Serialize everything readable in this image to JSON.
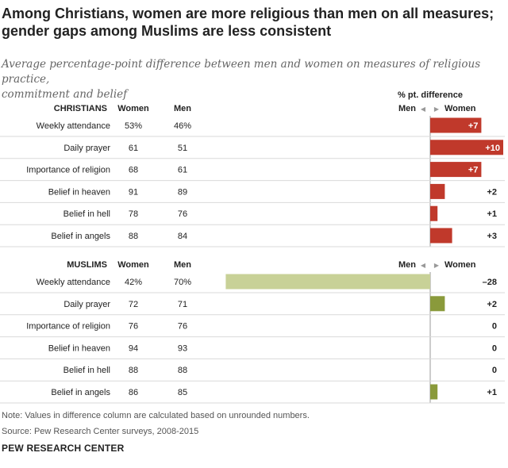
{
  "title_lines": [
    "Among Christians, women are more religious than men on all measures;",
    "gender gaps among Muslims are less consistent"
  ],
  "subtitle_lines": [
    "Average percentage-point difference between men and women on measures of religious practice,",
    "commitment and belief"
  ],
  "diff_header": "% pt. difference",
  "axis_left_label": "Men",
  "axis_right_label": "Women",
  "arrow_left": "◀",
  "arrow_right": "▶",
  "col_women": "Women",
  "col_men": "Men",
  "colors": {
    "christian_bar": "#c0392b",
    "muslim_positive": "#8a9a3b",
    "muslim_negative": "#c8d197"
  },
  "chart_data": {
    "type": "bar",
    "groups": [
      {
        "name": "CHRISTIANS",
        "rows": [
          {
            "label": "Weekly attendance",
            "women": "53%",
            "men": "46%",
            "diff": 7,
            "diff_label": "+7"
          },
          {
            "label": "Daily prayer",
            "women": "61",
            "men": "51",
            "diff": 10,
            "diff_label": "+10"
          },
          {
            "label": "Importance of religion",
            "women": "68",
            "men": "61",
            "diff": 7,
            "diff_label": "+7"
          },
          {
            "label": "Belief in heaven",
            "women": "91",
            "men": "89",
            "diff": 2,
            "diff_label": "+2"
          },
          {
            "label": "Belief in hell",
            "women": "78",
            "men": "76",
            "diff": 1,
            "diff_label": "+1"
          },
          {
            "label": "Belief in angels",
            "women": "88",
            "men": "84",
            "diff": 3,
            "diff_label": "+3"
          }
        ]
      },
      {
        "name": "MUSLIMS",
        "rows": [
          {
            "label": "Weekly attendance",
            "women": "42%",
            "men": "70%",
            "diff": -28,
            "diff_label": "–28"
          },
          {
            "label": "Daily prayer",
            "women": "72",
            "men": "71",
            "diff": 2,
            "diff_label": "+2"
          },
          {
            "label": "Importance of religion",
            "women": "76",
            "men": "76",
            "diff": 0,
            "diff_label": "0"
          },
          {
            "label": "Belief in heaven",
            "women": "94",
            "men": "93",
            "diff": 0,
            "diff_label": "0"
          },
          {
            "label": "Belief in hell",
            "women": "88",
            "men": "88",
            "diff": 0,
            "diff_label": "0"
          },
          {
            "label": "Belief in angels",
            "women": "86",
            "men": "85",
            "diff": 1,
            "diff_label": "+1"
          }
        ]
      }
    ]
  },
  "note": "Note: Values in difference column are calculated based on unrounded numbers.",
  "source": "Source: Pew Research Center surveys, 2008-2015",
  "brand": "PEW RESEARCH CENTER"
}
